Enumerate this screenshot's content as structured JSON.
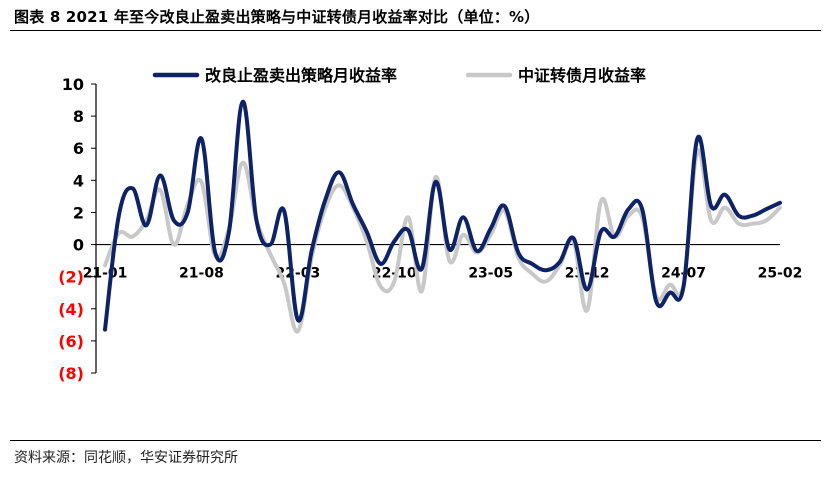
{
  "title": "图表 8  2021 年至今改良止盈卖出策略与中证转债月收益率对比（单位：%）",
  "source": "资料来源：同花顺，华安证券研究所",
  "chart_data": {
    "type": "line",
    "title": "图表 8  2021 年至今改良止盈卖出策略与中证转债月收益率对比（单位：%）",
    "xlabel": "",
    "ylabel": "",
    "ylim": [
      -8,
      10
    ],
    "y_ticks": [
      {
        "value": 10,
        "label": "10",
        "color": "#000000"
      },
      {
        "value": 8,
        "label": "8",
        "color": "#000000"
      },
      {
        "value": 6,
        "label": "6",
        "color": "#000000"
      },
      {
        "value": 4,
        "label": "4",
        "color": "#000000"
      },
      {
        "value": 2,
        "label": "2",
        "color": "#000000"
      },
      {
        "value": 0,
        "label": "0",
        "color": "#000000"
      },
      {
        "value": -2,
        "label": "(2)",
        "color": "#ff0000"
      },
      {
        "value": -4,
        "label": "(4)",
        "color": "#ff0000"
      },
      {
        "value": -6,
        "label": "(6)",
        "color": "#ff0000"
      },
      {
        "value": -8,
        "label": "(8)",
        "color": "#ff0000"
      }
    ],
    "x": [
      "21-01",
      "21-02",
      "21-03",
      "21-04",
      "21-05",
      "21-06",
      "21-07",
      "21-08",
      "21-09",
      "21-10",
      "21-11",
      "21-12",
      "22-01",
      "22-02",
      "22-03",
      "22-04",
      "22-05",
      "22-06",
      "22-07",
      "22-08",
      "22-09",
      "22-10",
      "22-11",
      "22-12",
      "23-01",
      "23-02",
      "23-03",
      "23-04",
      "23-05",
      "23-06",
      "23-07",
      "23-08",
      "23-09",
      "23-10",
      "23-11",
      "23-12",
      "24-01",
      "24-02",
      "24-03",
      "24-04",
      "24-05",
      "24-06",
      "24-07",
      "24-08",
      "24-09",
      "24-10",
      "24-11",
      "24-12",
      "25-01",
      "25-02"
    ],
    "x_tick_labels": [
      "21-01",
      "21-08",
      "22-03",
      "22-10",
      "23-05",
      "23-12",
      "24-07",
      "25-02"
    ],
    "legend_position": "top",
    "grid": false,
    "series": [
      {
        "name": "改良止盈卖出策略月收益率",
        "color": "#0d2366",
        "values": [
          -5.3,
          1.8,
          3.5,
          1.2,
          4.3,
          1.5,
          2.0,
          6.6,
          -0.5,
          0.8,
          8.9,
          1.5,
          0.0,
          2.1,
          -4.7,
          -0.4,
          2.8,
          4.5,
          2.5,
          0.8,
          -1.2,
          0.2,
          0.9,
          -1.5,
          3.9,
          -0.3,
          1.7,
          -0.4,
          1.0,
          2.4,
          -0.5,
          -1.2,
          -1.6,
          -1.1,
          0.4,
          -2.8,
          0.8,
          0.5,
          2.2,
          2.2,
          -3.5,
          -3.0,
          -2.6,
          6.6,
          2.4,
          3.1,
          1.8,
          1.8,
          2.2,
          2.6
        ]
      },
      {
        "name": "中证转债月收益率",
        "color": "#c8c8c8",
        "values": [
          -1.3,
          0.7,
          0.5,
          1.5,
          3.4,
          0.0,
          2.5,
          3.9,
          -0.7,
          1.0,
          5.1,
          1.5,
          -0.6,
          -2.4,
          -5.4,
          -0.8,
          2.3,
          3.7,
          2.3,
          0.2,
          -2.6,
          -2.3,
          1.7,
          -2.9,
          4.2,
          -1.0,
          0.6,
          -0.5,
          0.6,
          2.1,
          -0.8,
          -1.8,
          -2.3,
          -1.3,
          0.2,
          -4.1,
          2.7,
          0.5,
          1.8,
          1.7,
          -3.2,
          -2.5,
          -2.5,
          5.8,
          1.5,
          2.3,
          1.3,
          1.3,
          1.5,
          2.3
        ]
      }
    ]
  }
}
